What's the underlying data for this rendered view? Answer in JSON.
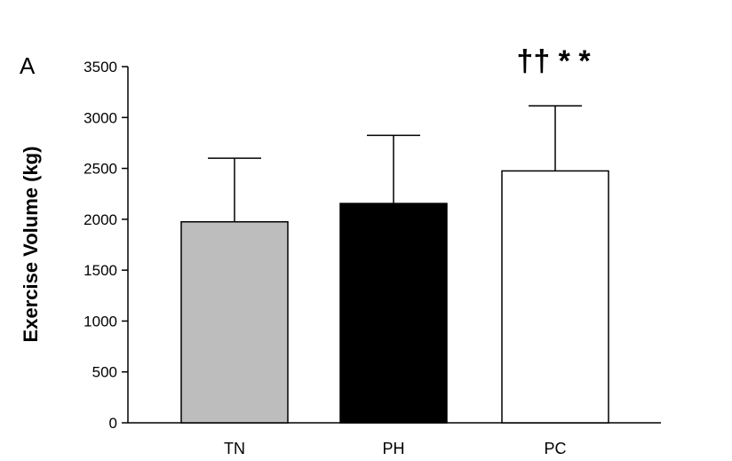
{
  "panel_label": "A",
  "chart_data": {
    "type": "bar",
    "categories": [
      "TN",
      "PH",
      "PC"
    ],
    "series": [
      {
        "values": [
          1975,
          2155,
          2475
        ],
        "error_upper": [
          625,
          670,
          640
        ],
        "colors": [
          "#bdbdbd",
          "#000000",
          "#ffffff"
        ]
      }
    ],
    "annotations": [
      {
        "category": "PC",
        "text": "†† * *"
      }
    ],
    "xlabel": "",
    "ylabel": "Exercise Volume (kg)",
    "ylim": [
      0,
      3500
    ],
    "yticks": [
      0,
      500,
      1000,
      1500,
      2000,
      2500,
      3000,
      3500
    ],
    "grid": false
  }
}
